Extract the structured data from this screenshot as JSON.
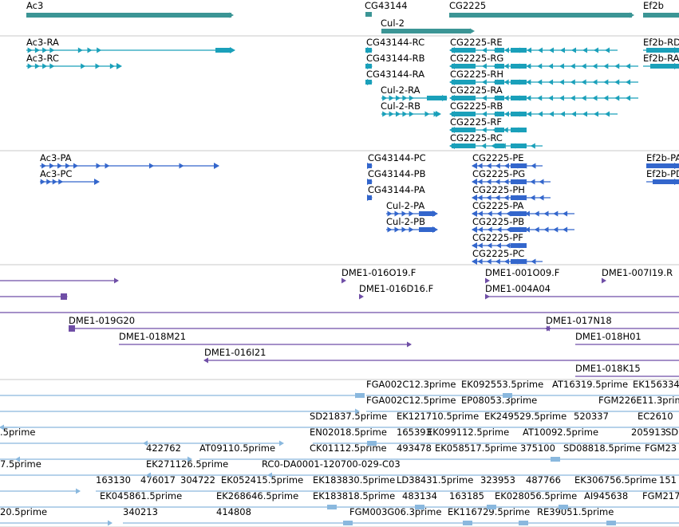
{
  "colors": {
    "gene": "#3b9595",
    "transcript": "#1aa0ba",
    "protein": "#3366cc",
    "clone": "#6f4ea6",
    "est": "#8ab8de",
    "divider": "#c8c8c8"
  },
  "tracks": {
    "genes": [
      {
        "label": "Ac3",
        "strand": "+"
      },
      {
        "label": "CG43144",
        "strand": "+"
      },
      {
        "label": "Cul-2",
        "strand": "+"
      },
      {
        "label": "CG2225",
        "strand": "+"
      },
      {
        "label": "Ef2b",
        "strand": "+"
      }
    ],
    "transcripts": [
      "Ac3-RA",
      "Ac3-RC",
      "CG43144-RC",
      "CG43144-RB",
      "CG43144-RA",
      "Cul-2-RA",
      "Cul-2-RB",
      "CG2225-RE",
      "CG2225-RG",
      "CG2225-RH",
      "CG2225-RA",
      "CG2225-RB",
      "CG2225-RF",
      "CG2225-RC",
      "Ef2b-RD",
      "Ef2b-RA"
    ],
    "proteins": [
      "Ac3-PA",
      "Ac3-PC",
      "CG43144-PC",
      "CG43144-PB",
      "CG43144-PA",
      "Cul-2-PA",
      "Cul-2-PB",
      "CG2225-PE",
      "CG2225-PG",
      "CG2225-PH",
      "CG2225-PA",
      "CG2225-PB",
      "CG2225-PF",
      "CG2225-PC",
      "Ef2b-PA",
      "Ef2b-PD"
    ],
    "clones": [
      "DME1-016O19.F",
      "DME1-001O09.F",
      "DME1-007I19.R",
      "DME1-016D16.F",
      "DME1-004A04",
      "DME1-019G20",
      "DME1-017N18",
      "DME1-018M21",
      "DME1-018H01",
      "DME1-016I21",
      "DME1-018K15"
    ],
    "ests": [
      "FGA002C12.3prime",
      "EK092553.5prime",
      "AT16319.5prime",
      "EK156334",
      "FGA002C12.5prime",
      "EP08053.3prime",
      "FGM226E11.3prime",
      "SD21837.5prime",
      "EK121710.5prime",
      "EK249529.5prime",
      "520337",
      "EC2610",
      "EN02018.5prime",
      "165393",
      "EK099112.5prime",
      "AT10092.5prime",
      "205913",
      "SD",
      ".5prime",
      "422762",
      "AT09110.5prime",
      "CK01112.5prime",
      "493478",
      "EK058517.5prime",
      "375100",
      "SD08818.5prime",
      "FGM23",
      "7.5prime",
      "EK271126.5prime",
      "RC0-DA0001-120700-029-C03",
      "163130",
      "476017",
      "304722",
      "EK052415.5prime",
      "EK183830.5prime",
      "LD38431.5prime",
      "323953",
      "487766",
      "EK306756.5prime",
      "151",
      "EK045861.5prime",
      "EK268646.5prime",
      "EK183818.5prime",
      "483134",
      "163185",
      "EK028056.5prime",
      "AI945638",
      "FGM217",
      "20.5prime",
      "340213",
      "414808",
      "FGM003G06.3prime",
      "EK116729.5prime",
      "RE39051.5prime"
    ]
  }
}
